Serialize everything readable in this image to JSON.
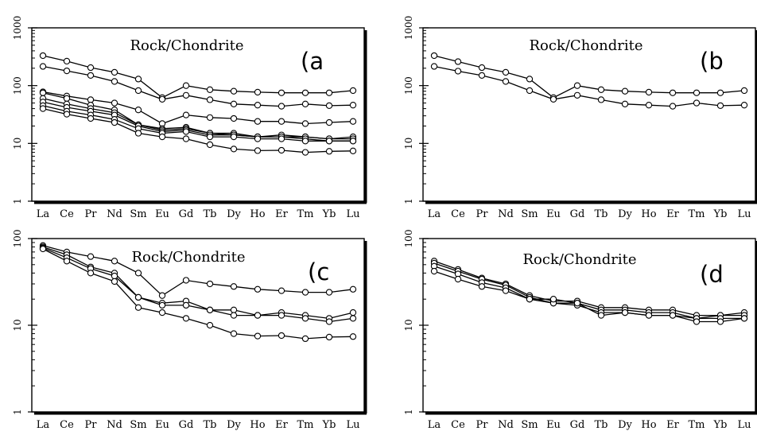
{
  "chart_data": [
    {
      "panel_label": "(a",
      "title": "Rock/Chondrite",
      "type": "line",
      "yscale": "log",
      "ylim": [
        1,
        1000
      ],
      "yticks": [
        "1",
        "10",
        "100",
        "1000"
      ],
      "categories": [
        "La",
        "Ce",
        "Pr",
        "Nd",
        "Sm",
        "Eu",
        "Gd",
        "Tb",
        "Dy",
        "Ho",
        "Er",
        "Tm",
        "Yb",
        "Lu"
      ],
      "series": [
        {
          "values": [
            330,
            265,
            205,
            170,
            130,
            62,
            100,
            85,
            80,
            77,
            75,
            75,
            75,
            82
          ]
        },
        {
          "values": [
            215,
            180,
            150,
            118,
            82,
            58,
            68,
            57,
            48,
            46,
            44,
            48,
            45,
            46
          ]
        },
        {
          "values": [
            78,
            66,
            57,
            50,
            38,
            22,
            31,
            28,
            27,
            24,
            24,
            22,
            23,
            24
          ]
        },
        {
          "values": [
            75,
            60,
            46,
            38,
            21,
            18,
            19,
            15,
            15,
            13,
            13,
            13,
            12,
            13
          ]
        },
        {
          "values": [
            60,
            48,
            40,
            34,
            21,
            17,
            18,
            15,
            14,
            13,
            14,
            13,
            12,
            12
          ]
        },
        {
          "values": [
            52,
            42,
            36,
            31,
            20,
            16,
            17,
            14,
            14,
            13,
            13,
            12,
            11,
            11
          ]
        },
        {
          "values": [
            45,
            36,
            31,
            26,
            18,
            15,
            16,
            13,
            13,
            12,
            12,
            11,
            11,
            11
          ]
        },
        {
          "values": [
            40,
            32,
            27,
            23,
            15,
            13,
            12,
            9.5,
            8,
            7.5,
            7.6,
            7,
            7.3,
            7.4
          ]
        }
      ]
    },
    {
      "panel_label": "(b",
      "title": "Rock/Chondrite",
      "type": "line",
      "yscale": "log",
      "ylim": [
        1,
        1000
      ],
      "yticks": [
        "1",
        "10",
        "100",
        "1000"
      ],
      "categories": [
        "La",
        "Ce",
        "Pr",
        "Nd",
        "Sm",
        "Eu",
        "Gd",
        "Tb",
        "Dy",
        "Ho",
        "Er",
        "Tm",
        "Yb",
        "Lu"
      ],
      "series": [
        {
          "values": [
            330,
            260,
            205,
            170,
            130,
            62,
            100,
            85,
            80,
            77,
            75,
            75,
            75,
            82
          ]
        },
        {
          "values": [
            215,
            178,
            150,
            118,
            82,
            58,
            68,
            57,
            48,
            46,
            44,
            50,
            45,
            46
          ]
        }
      ]
    },
    {
      "panel_label": "(c",
      "title": "Rock/Chondrite",
      "type": "line",
      "yscale": "log",
      "ylim": [
        1,
        100
      ],
      "yticks": [
        "1",
        "10",
        "100"
      ],
      "categories": [
        "La",
        "Ce",
        "Pr",
        "Nd",
        "Sm",
        "Eu",
        "Gd",
        "Tb",
        "Dy",
        "Ho",
        "Er",
        "Tm",
        "Yb",
        "Lu"
      ],
      "series": [
        {
          "values": [
            83,
            70,
            62,
            55,
            40,
            22,
            33,
            30,
            28,
            26,
            25,
            24,
            24,
            26
          ]
        },
        {
          "values": [
            80,
            65,
            47,
            40,
            21,
            18,
            19,
            15,
            15,
            13,
            14,
            13,
            12,
            14
          ]
        },
        {
          "values": [
            78,
            60,
            45,
            37,
            21,
            17,
            17,
            15,
            13,
            13,
            13,
            12,
            11,
            12
          ]
        },
        {
          "values": [
            76,
            55,
            40,
            32,
            16,
            14,
            12,
            10,
            8,
            7.5,
            7.6,
            7,
            7.3,
            7.4
          ]
        }
      ]
    },
    {
      "panel_label": "(d",
      "title": "Rock/Chondrite",
      "type": "line",
      "yscale": "log",
      "ylim": [
        1,
        100
      ],
      "yticks": [
        "1",
        "10",
        "100"
      ],
      "categories": [
        "La",
        "Ce",
        "Pr",
        "Nd",
        "Sm",
        "Eu",
        "Gd",
        "Tb",
        "Dy",
        "Ho",
        "Er",
        "Tm",
        "Yb",
        "Lu"
      ],
      "series": [
        {
          "values": [
            55,
            44,
            35,
            30,
            22,
            19,
            19,
            16,
            16,
            15,
            15,
            13,
            13,
            14
          ]
        },
        {
          "values": [
            52,
            42,
            34,
            29,
            21,
            18,
            18,
            15,
            15,
            14,
            14,
            12,
            13,
            13
          ]
        },
        {
          "values": [
            48,
            39,
            31,
            27,
            20,
            18,
            17,
            14,
            14,
            13,
            13,
            12,
            12,
            12
          ]
        },
        {
          "values": [
            42,
            34,
            28,
            25,
            20,
            20,
            18,
            13,
            14,
            13,
            13,
            11,
            11,
            12
          ]
        }
      ]
    }
  ]
}
